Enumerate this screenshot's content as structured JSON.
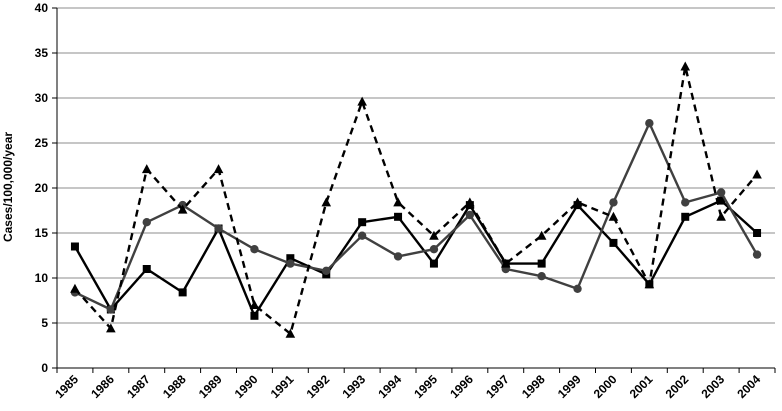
{
  "chart_data": {
    "type": "line",
    "title": "",
    "xlabel": "",
    "ylabel": "Cases/100,000/year",
    "ylim": [
      0,
      40
    ],
    "yticks": [
      0,
      5,
      10,
      15,
      20,
      25,
      30,
      35,
      40
    ],
    "grid": "horizontal",
    "legend": "none",
    "categories": [
      "1985",
      "1986",
      "1987",
      "1988",
      "1989",
      "1990",
      "1991",
      "1992",
      "1993",
      "1994",
      "1995",
      "1996",
      "1997",
      "1998",
      "1999",
      "2000",
      "2001",
      "2002",
      "2003",
      "2004"
    ],
    "series": [
      {
        "marker": "square",
        "line_style": "solid",
        "color": "#000000",
        "values": [
          13.5,
          6.5,
          11.0,
          8.4,
          15.5,
          5.8,
          12.2,
          10.4,
          16.2,
          16.8,
          11.6,
          18.1,
          11.6,
          11.6,
          18.1,
          13.9,
          9.3,
          16.8,
          18.6,
          15.0
        ]
      },
      {
        "marker": "circle",
        "line_style": "solid",
        "color": "#404040",
        "values": [
          8.4,
          6.5,
          16.2,
          18.1,
          15.5,
          13.2,
          11.6,
          10.8,
          14.7,
          12.4,
          13.2,
          17.0,
          11.0,
          10.2,
          8.8,
          18.4,
          27.2,
          18.4,
          19.5,
          12.6
        ]
      },
      {
        "marker": "triangle",
        "line_style": "dashed",
        "color": "#000000",
        "values": [
          8.8,
          4.4,
          22.1,
          17.6,
          22.1,
          7.0,
          3.8,
          18.4,
          29.6,
          18.4,
          14.7,
          18.4,
          11.6,
          14.7,
          18.4,
          16.8,
          9.3,
          33.5,
          16.8,
          21.5
        ]
      }
    ]
  }
}
